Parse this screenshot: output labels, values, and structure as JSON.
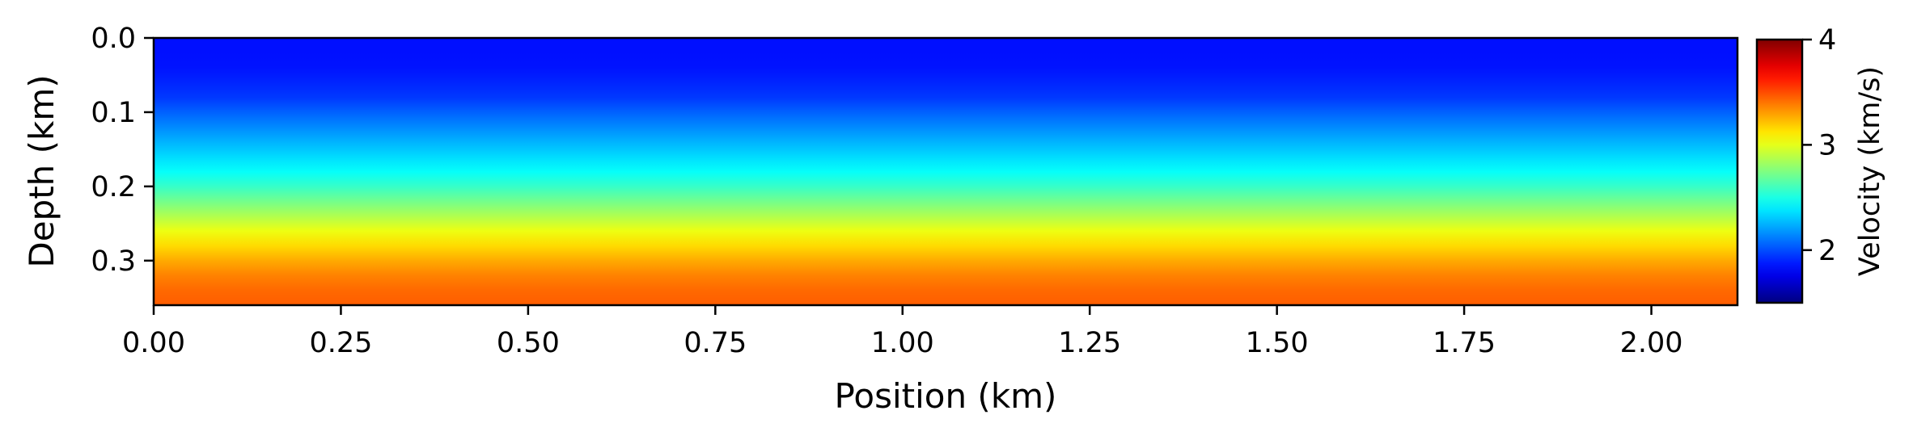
{
  "chart_data": {
    "type": "heatmap",
    "title": "",
    "xlabel": "Position (km)",
    "ylabel": "Depth (km)",
    "xlim": [
      0.0,
      2.115
    ],
    "ylim": [
      0.36,
      0.0
    ],
    "x_ticks": [
      0.0,
      0.25,
      0.5,
      0.75,
      1.0,
      1.25,
      1.5,
      1.75,
      2.0
    ],
    "x_tick_labels": [
      "0.00",
      "0.25",
      "0.50",
      "0.75",
      "1.00",
      "1.25",
      "1.50",
      "1.75",
      "2.00"
    ],
    "y_ticks": [
      0.0,
      0.1,
      0.2,
      0.3
    ],
    "y_tick_labels": [
      "0.0",
      "0.1",
      "0.2",
      "0.3"
    ],
    "colormap": "jet",
    "grid": false,
    "colorbar": {
      "label": "Velocity (km/s)",
      "vmin": 1.5,
      "vmax": 4.0,
      "ticks": [
        2,
        3,
        4
      ],
      "tick_labels": [
        "2",
        "3",
        "4"
      ]
    },
    "velocity_profile": {
      "description_units": "depth (km) -> velocity (km/s), laterally constant",
      "depth": [
        0.0,
        0.02,
        0.04,
        0.06,
        0.08,
        0.1,
        0.12,
        0.14,
        0.16,
        0.18,
        0.2,
        0.22,
        0.24,
        0.26,
        0.28,
        0.3,
        0.32,
        0.34,
        0.36
      ],
      "velocity": [
        1.85,
        1.85,
        1.86,
        1.9,
        1.95,
        2.05,
        2.15,
        2.25,
        2.35,
        2.45,
        2.57,
        2.72,
        2.87,
        3.02,
        3.15,
        3.27,
        3.37,
        3.43,
        3.46
      ]
    }
  }
}
